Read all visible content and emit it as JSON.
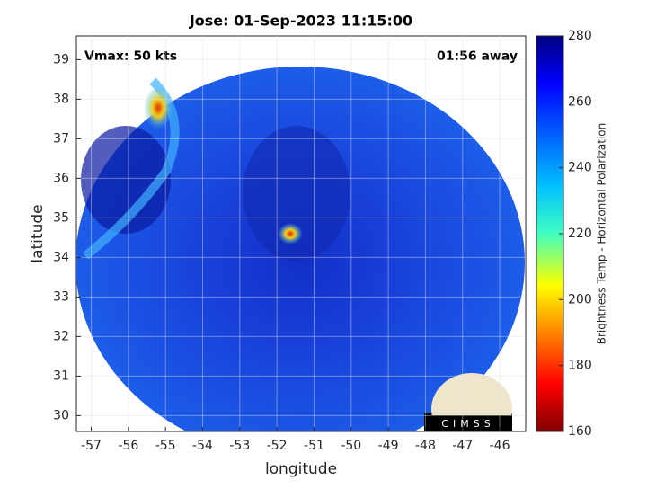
{
  "chart_data": {
    "type": "image",
    "title": "Jose: 01-Sep-2023 11:15:00",
    "annotations": [
      "Vmax: 50 kts",
      "01:56 away"
    ],
    "x_label": "longitude",
    "y_label": "latitude",
    "xlim": [
      -57.4,
      -45.3
    ],
    "xticks": [
      -57,
      -56,
      -55,
      -54,
      -53,
      -52,
      -51,
      -50,
      -49,
      -48,
      -47,
      -46
    ],
    "ylim": [
      29.6,
      39.6
    ],
    "yticks": [
      30,
      31,
      32,
      33,
      34,
      35,
      36,
      37,
      38,
      39
    ],
    "grid": true,
    "colorbar": {
      "label": "Brightness Temp - Horizontal Polarization",
      "lim": [
        160,
        280
      ],
      "ticks": [
        160,
        180,
        200,
        220,
        240,
        260,
        280
      ]
    },
    "logo_text": "CIMSS"
  }
}
